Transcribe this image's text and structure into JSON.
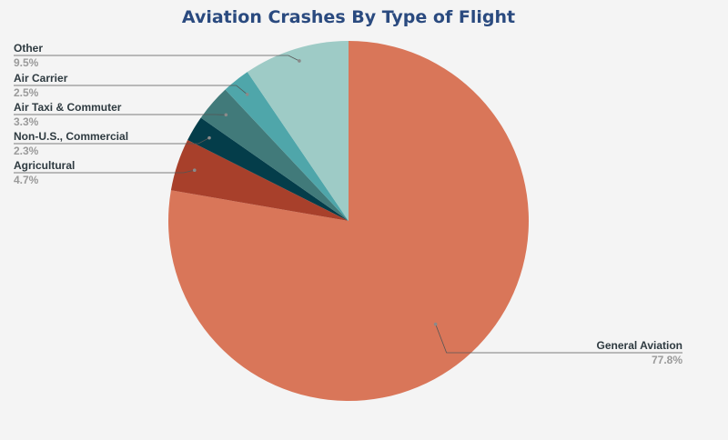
{
  "chart_data": {
    "type": "pie",
    "title": "Aviation Crashes By Type of Flight",
    "slices": [
      {
        "label": "General Aviation",
        "value": 77.8,
        "display": "77.8%",
        "color": "#d97659"
      },
      {
        "label": "Agricultural",
        "value": 4.7,
        "display": "4.7%",
        "color": "#a8402b"
      },
      {
        "label": "Non-U.S., Commercial",
        "value": 2.3,
        "display": "2.3%",
        "color": "#043d4a"
      },
      {
        "label": "Air Taxi & Commuter",
        "value": 3.3,
        "display": "3.3%",
        "color": "#417a7a"
      },
      {
        "label": "Air Carrier",
        "value": 2.5,
        "display": "2.5%",
        "color": "#4fa6aa"
      },
      {
        "label": "Other",
        "value": 9.5,
        "display": "9.5%",
        "color": "#9ecbc6"
      }
    ],
    "start_angle": "12 o'clock",
    "direction": "clockwise",
    "legend": "none (callout labels)"
  }
}
